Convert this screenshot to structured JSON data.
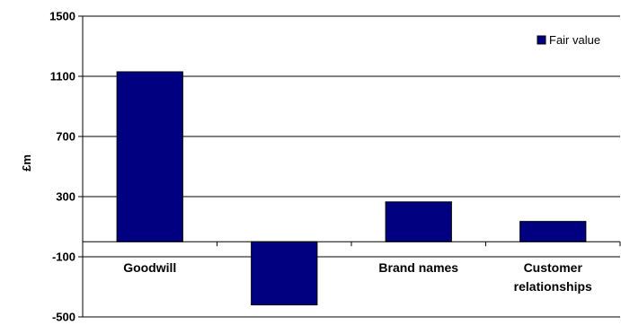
{
  "chart_data": {
    "type": "bar",
    "categories": [
      "Goodwill",
      "",
      "Brand names",
      "Customer\nrelationships"
    ],
    "series": [
      {
        "name": "Fair value",
        "values": [
          1130,
          -420,
          265,
          135
        ],
        "color": "#000080"
      }
    ],
    "title": "",
    "xlabel": "",
    "ylabel": "£m",
    "ylim": [
      -500,
      1500
    ],
    "yticks": [
      1500,
      1100,
      700,
      300,
      -100,
      -500
    ],
    "grid": true,
    "legend": "top-right"
  }
}
